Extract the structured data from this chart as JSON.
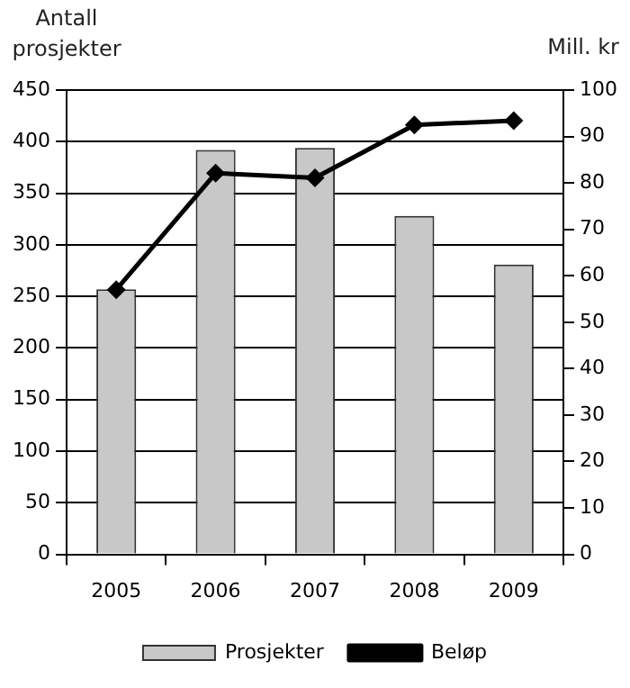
{
  "chart_data": {
    "type": "bar",
    "categories": [
      "2005",
      "2006",
      "2007",
      "2008",
      "2009"
    ],
    "ylabel": "Antall prosjekter",
    "y2label": "Mill. kr",
    "series": [
      {
        "name": "Prosjekter",
        "color": "#c8c8c8",
        "values": [
          257,
          392,
          394,
          328,
          281
        ]
      },
      {
        "name": "Beløp",
        "type": "line",
        "axis": "y2",
        "color": "#000000",
        "values": [
          57,
          82.1,
          81.1,
          92.5,
          93.4
        ]
      }
    ],
    "ylim": [
      0,
      450
    ],
    "yticks": [
      0,
      50,
      100,
      150,
      200,
      250,
      300,
      350,
      400,
      450
    ],
    "y2lim": [
      0,
      100
    ],
    "y2ticks": [
      0,
      10,
      20,
      30,
      40,
      50,
      60,
      70,
      80,
      90,
      100
    ],
    "grid": "y",
    "legend": "bottom",
    "marker": "diamond",
    "line_style": "solid"
  }
}
